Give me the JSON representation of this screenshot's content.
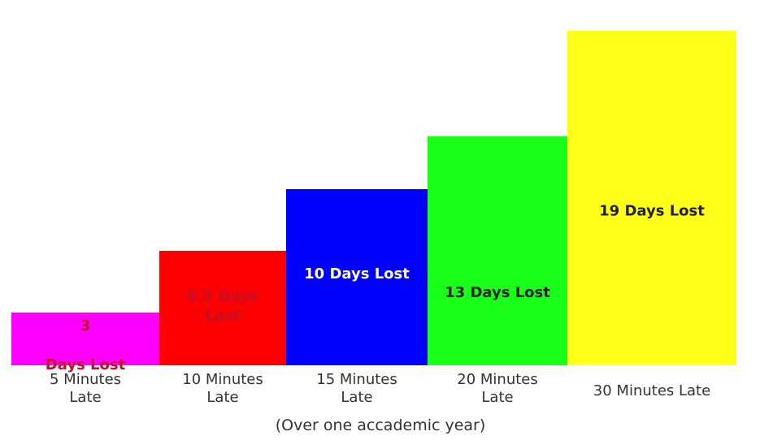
{
  "chart_data": {
    "type": "bar",
    "categories": [
      "5 Minutes\nLate",
      "10 Minutes\nLate",
      "15 Minutes\nLate",
      "20 Minutes\nLate",
      "30 Minutes Late"
    ],
    "values": [
      3,
      6.5,
      10,
      13,
      19
    ],
    "bar_labels": [
      "3\n\nDays Lost",
      "6.5 Days\nLost",
      "10 Days Lost",
      "13 Days Lost",
      "19 Days Lost"
    ],
    "colors": [
      "#ff00ff",
      "#ff0000",
      "#0000ff",
      "#1aff1a",
      "#ffff1a"
    ],
    "label_colors": [
      "#c0102a",
      "#c0102a",
      "#ffffff",
      "#222222",
      "#222222"
    ],
    "footnote": "(Over one accademic year)",
    "title": "",
    "xlabel": "",
    "ylabel": "",
    "ylim": [
      0,
      20
    ],
    "grid": false
  }
}
